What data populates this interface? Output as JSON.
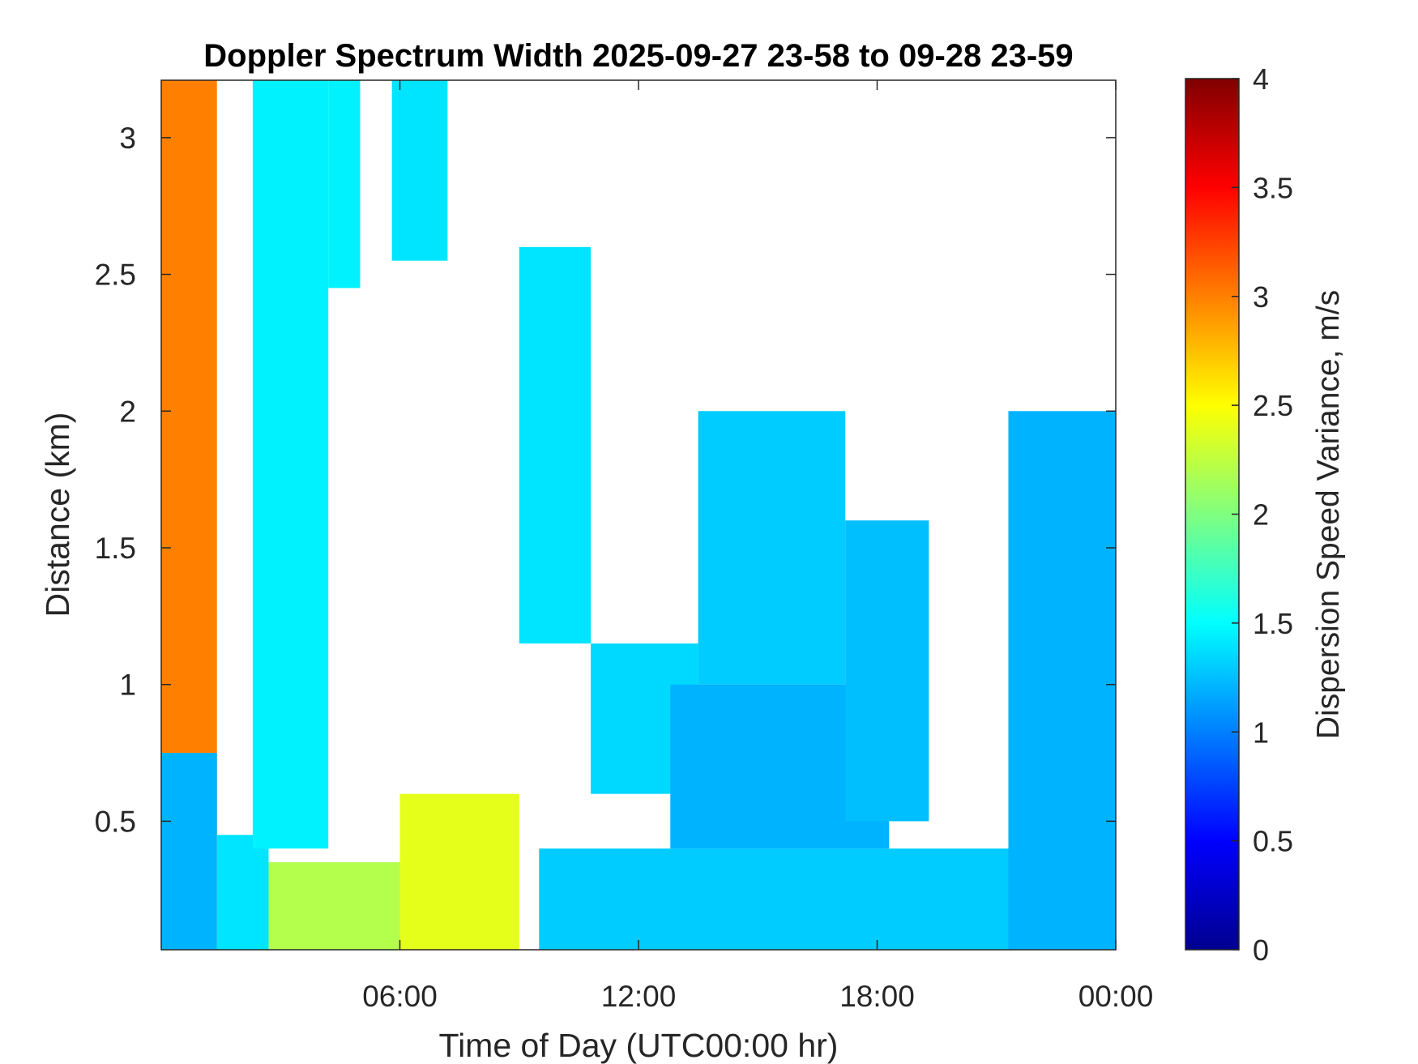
{
  "chart_data": {
    "type": "heatmap",
    "title": "Doppler Spectrum Width 2025-09-27 23-58 to 09-28 23-59",
    "xlabel": "Time of Day (UTC00:00 hr)",
    "ylabel": "Distance (km)",
    "colorbar_label": "Dispersion Speed Variance, m/s",
    "x_ticks": [
      "06:00",
      "12:00",
      "18:00",
      "00:00"
    ],
    "x_tick_hours": [
      6,
      12,
      18,
      24
    ],
    "xlim_hours": [
      0,
      24
    ],
    "y_ticks": [
      "0.5",
      "1",
      "1.5",
      "2",
      "2.5",
      "3"
    ],
    "y_tick_values": [
      0.5,
      1,
      1.5,
      2,
      2.5,
      3
    ],
    "ylim": [
      0.03,
      3.21
    ],
    "colorbar_ticks": [
      "0",
      "0.5",
      "1",
      "1.5",
      "2",
      "2.5",
      "3",
      "3.5",
      "4"
    ],
    "colorbar_values": [
      0,
      0.5,
      1,
      1.5,
      2,
      2.5,
      3,
      3.5,
      4
    ],
    "clim": [
      0,
      4
    ],
    "colormap": "jet",
    "grid": false,
    "regions": [
      {
        "from_hour": 0.0,
        "to_hour": 1.4,
        "from_km": 0.03,
        "to_km": 3.21,
        "value": 3.0
      },
      {
        "from_hour": 0.0,
        "to_hour": 1.4,
        "from_km": 0.03,
        "to_km": 0.75,
        "value": 1.2
      },
      {
        "from_hour": 1.4,
        "to_hour": 2.7,
        "from_km": 0.03,
        "to_km": 0.45,
        "value": 1.4
      },
      {
        "from_hour": 2.3,
        "to_hour": 4.2,
        "from_km": 0.4,
        "to_km": 3.21,
        "value": 1.45
      },
      {
        "from_hour": 2.7,
        "to_hour": 6.0,
        "from_km": 0.03,
        "to_km": 0.35,
        "value": 2.2
      },
      {
        "from_hour": 4.2,
        "to_hour": 5.0,
        "from_km": 2.45,
        "to_km": 3.21,
        "value": 1.45
      },
      {
        "from_hour": 5.8,
        "to_hour": 7.2,
        "from_km": 2.55,
        "to_km": 3.21,
        "value": 1.4
      },
      {
        "from_hour": 6.0,
        "to_hour": 9.0,
        "from_km": 0.03,
        "to_km": 0.6,
        "value": 2.4
      },
      {
        "from_hour": 9.0,
        "to_hour": 10.8,
        "from_km": 1.15,
        "to_km": 2.6,
        "value": 1.4
      },
      {
        "from_hour": 10.8,
        "to_hour": 13.5,
        "from_km": 0.6,
        "to_km": 1.15,
        "value": 1.35
      },
      {
        "from_hour": 9.5,
        "to_hour": 24.0,
        "from_km": 0.03,
        "to_km": 0.4,
        "value": 1.3
      },
      {
        "from_hour": 12.8,
        "to_hour": 18.3,
        "from_km": 0.4,
        "to_km": 1.0,
        "value": 1.2
      },
      {
        "from_hour": 13.5,
        "to_hour": 17.2,
        "from_km": 1.0,
        "to_km": 2.0,
        "value": 1.3
      },
      {
        "from_hour": 17.2,
        "to_hour": 19.3,
        "from_km": 0.5,
        "to_km": 1.6,
        "value": 1.25
      },
      {
        "from_hour": 21.3,
        "to_hour": 24.0,
        "from_km": 0.03,
        "to_km": 2.0,
        "value": 1.2
      }
    ]
  }
}
